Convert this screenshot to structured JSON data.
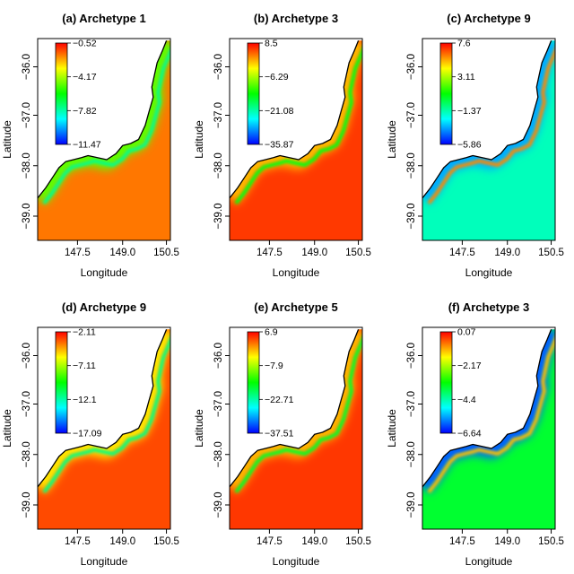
{
  "chart_data": [
    {
      "type": "heatmap",
      "title": "(a) Archetype 1",
      "xlabel": "Longitude",
      "ylabel": "Latitude",
      "x_ticks": [
        "147.5",
        "149.0",
        "150.5"
      ],
      "y_ticks": [
        "−36.0",
        "−37.0",
        "−38.0",
        "−39.0"
      ],
      "xlim": [
        147.25,
        150.75
      ],
      "ylim": [
        -39.35,
        -35.45
      ],
      "colorbar": {
        "ticks": [
          "−0.52",
          "−4.17",
          "−7.82",
          "−11.47"
        ],
        "min": -11.47,
        "max": -0.52
      },
      "field": {
        "open_sea": -1.8,
        "coast": -5.0,
        "edge": -7.5
      }
    },
    {
      "type": "heatmap",
      "title": "(b) Archetype 3",
      "xlabel": "Longitude",
      "ylabel": "Latitude",
      "x_ticks": [
        "147.5",
        "149.0",
        "150.5"
      ],
      "y_ticks": [
        "−36.0",
        "−37.0",
        "−38.0",
        "−39.0"
      ],
      "xlim": [
        147.25,
        150.75
      ],
      "ylim": [
        -39.35,
        -35.45
      ],
      "colorbar": {
        "ticks": [
          "8.5",
          "−6.29",
          "−21.08",
          "−35.87"
        ],
        "min": -35.87,
        "max": 8.5
      },
      "field": {
        "open_sea": 6.0,
        "coast": 0.5,
        "edge": -14.0
      }
    },
    {
      "type": "heatmap",
      "title": "(c) Archetype 9",
      "xlabel": "Longitude",
      "ylabel": "Latitude",
      "x_ticks": [
        "147.5",
        "149.0",
        "150.5"
      ],
      "y_ticks": [
        "−36.0",
        "−37.0",
        "−38.0",
        "−39.0"
      ],
      "xlim": [
        147.25,
        150.75
      ],
      "ylim": [
        -39.35,
        -35.45
      ],
      "colorbar": {
        "ticks": [
          "7.6",
          "3.11",
          "−1.37",
          "−5.86"
        ],
        "min": -5.86,
        "max": 7.6
      },
      "field": {
        "open_sea": -1.6,
        "coast": -3.6,
        "edge": 5.8
      }
    },
    {
      "type": "heatmap",
      "title": "(d) Archetype 9",
      "xlabel": "Longitude",
      "ylabel": "Latitude",
      "x_ticks": [
        "147.5",
        "149.0",
        "150.5"
      ],
      "y_ticks": [
        "−36.0",
        "−37.0",
        "−38.0",
        "−39.0"
      ],
      "xlim": [
        147.25,
        150.75
      ],
      "ylim": [
        -39.35,
        -35.45
      ],
      "colorbar": {
        "ticks": [
          "−2.11",
          "−7.11",
          "−12.1",
          "−17.09"
        ],
        "min": -17.09,
        "max": -2.11
      },
      "field": {
        "open_sea": -3.2,
        "coast": -5.5,
        "edge": -11.5
      }
    },
    {
      "type": "heatmap",
      "title": "(e) Archetype 5",
      "xlabel": "Longitude",
      "ylabel": "Latitude",
      "x_ticks": [
        "147.5",
        "149.0",
        "150.5"
      ],
      "y_ticks": [
        "−36.0",
        "−37.0",
        "−38.0",
        "−39.0"
      ],
      "xlim": [
        147.25,
        150.75
      ],
      "ylim": [
        -39.35,
        -35.45
      ],
      "colorbar": {
        "ticks": [
          "6.9",
          "−7.9",
          "−22.71",
          "−37.51"
        ],
        "min": -37.51,
        "max": 6.9
      },
      "field": {
        "open_sea": 4.5,
        "coast": -1.0,
        "edge": -17.0
      }
    },
    {
      "type": "heatmap",
      "title": "(f) Archetype 3",
      "xlabel": "Longitude",
      "ylabel": "Latitude",
      "x_ticks": [
        "147.5",
        "149.0",
        "150.5"
      ],
      "y_ticks": [
        "−36.0",
        "−37.0",
        "−38.0",
        "−39.0"
      ],
      "xlim": [
        147.25,
        150.75
      ],
      "ylim": [
        -39.35,
        -35.45
      ],
      "colorbar": {
        "ticks": [
          "0.07",
          "−2.17",
          "−4.4",
          "−6.64"
        ],
        "min": -6.64,
        "max": 0.07
      },
      "field": {
        "open_sea": -3.6,
        "coast": -6.0,
        "edge": -1.2
      }
    }
  ],
  "colors": {
    "background": "#ffffff",
    "coastline": "#000000",
    "colormap": [
      "#0000ff",
      "#00ffff",
      "#00ff00",
      "#ffff00",
      "#ff0000"
    ]
  }
}
